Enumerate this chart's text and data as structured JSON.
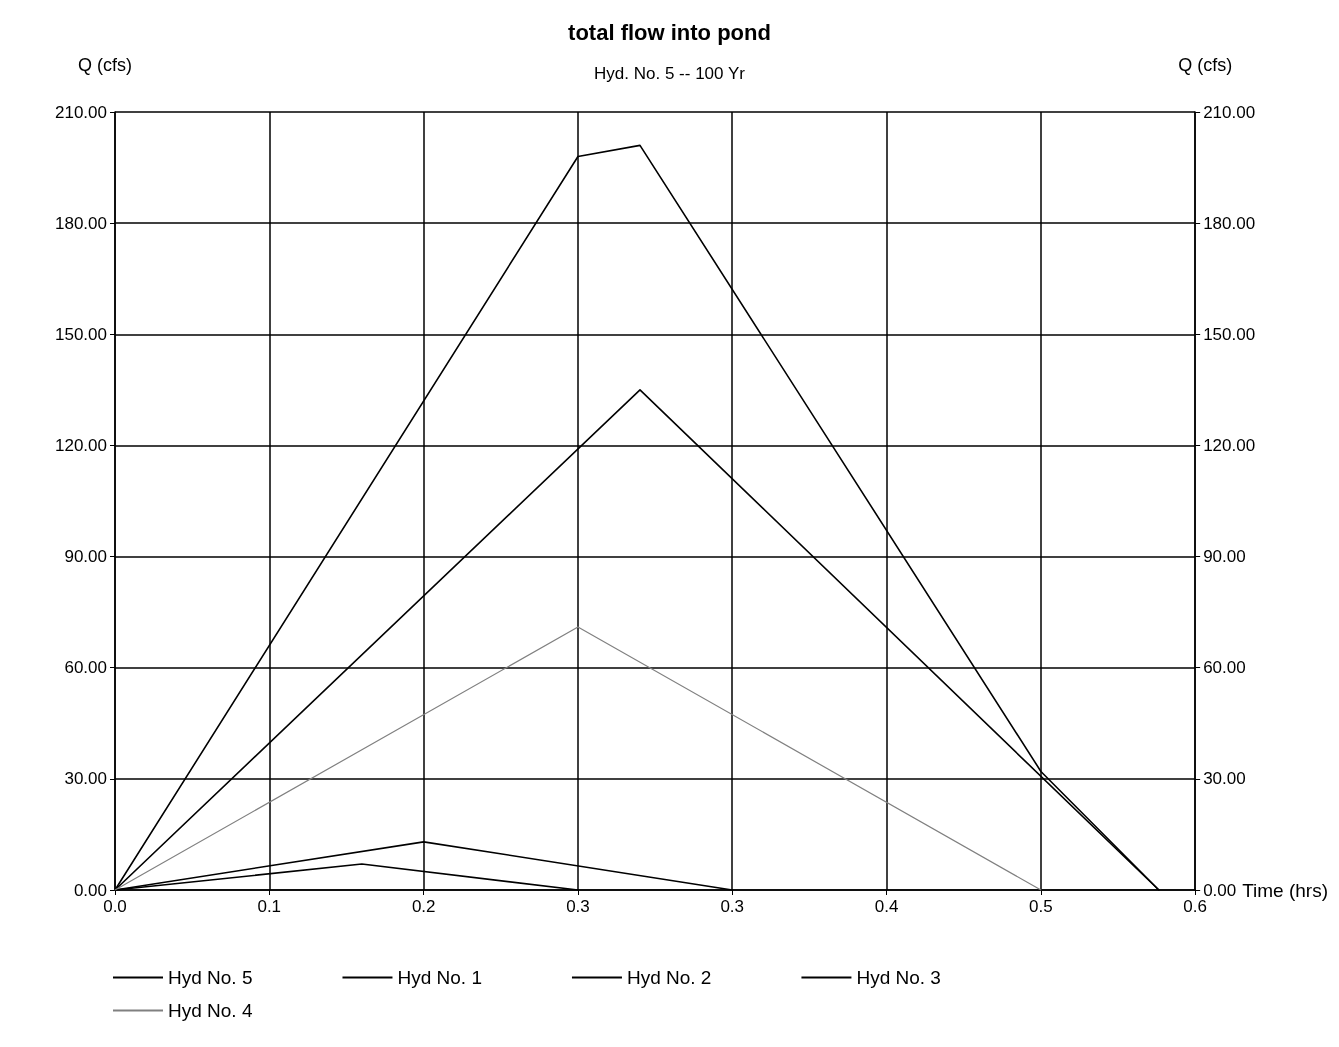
{
  "chart_data": {
    "type": "line",
    "title": "total flow into pond",
    "subtitle": "Hyd. No. 5 -- 100 Yr",
    "xlabel": "Time (hrs)",
    "ylabel": "Q (cfs)",
    "y2label": "Q (cfs)",
    "xlim": [
      0,
      0.5833
    ],
    "xticks": [
      {
        "value": 0,
        "label": "0.0"
      },
      {
        "value": 0.0833,
        "label": "0.1"
      },
      {
        "value": 0.1667,
        "label": "0.2"
      },
      {
        "value": 0.25,
        "label": "0.3"
      },
      {
        "value": 0.3333,
        "label": "0.3"
      },
      {
        "value": 0.4167,
        "label": "0.4"
      },
      {
        "value": 0.5,
        "label": "0.5"
      },
      {
        "value": 0.5833,
        "label": "0.6"
      }
    ],
    "ylim": [
      0,
      210
    ],
    "yticks": [
      {
        "value": 0,
        "label": "0.00"
      },
      {
        "value": 30,
        "label": "30.00"
      },
      {
        "value": 60,
        "label": "60.00"
      },
      {
        "value": 90,
        "label": "90.00"
      },
      {
        "value": 120,
        "label": "120.00"
      },
      {
        "value": 150,
        "label": "150.00"
      },
      {
        "value": 180,
        "label": "180.00"
      },
      {
        "value": 210,
        "label": "210.00"
      }
    ],
    "y2lim": [
      0,
      210
    ],
    "y2ticks": [
      {
        "value": 0,
        "label": "0.00"
      },
      {
        "value": 30,
        "label": "30.00"
      },
      {
        "value": 60,
        "label": "60.00"
      },
      {
        "value": 90,
        "label": "90.00"
      },
      {
        "value": 120,
        "label": "120.00"
      },
      {
        "value": 150,
        "label": "150.00"
      },
      {
        "value": 180,
        "label": "180.00"
      },
      {
        "value": 210,
        "label": "210.00"
      }
    ],
    "series": [
      {
        "name": "Hyd No. 5",
        "color": "#000000",
        "x": [
          0,
          0.25,
          0.2835,
          0.5,
          0.5637
        ],
        "values": [
          0,
          198,
          201,
          32,
          0
        ]
      },
      {
        "name": "Hyd No. 1",
        "color": "#000000",
        "x": [
          0,
          0.2835,
          0.5637
        ],
        "values": [
          0,
          135,
          0
        ]
      },
      {
        "name": "Hyd No. 2",
        "color": "#000000",
        "x": [
          0,
          0.1667,
          0.3333
        ],
        "values": [
          0,
          13,
          0
        ]
      },
      {
        "name": "Hyd No. 3",
        "color": "#000000",
        "x": [
          0,
          0.1333,
          0.25
        ],
        "values": [
          0,
          7,
          0
        ]
      },
      {
        "name": "Hyd No. 4",
        "color": "#808080",
        "x": [
          0,
          0.25,
          0.5
        ],
        "values": [
          0,
          71,
          0
        ]
      }
    ],
    "grid": true,
    "legend": "bottom",
    "marker": "none",
    "line_style": "solid"
  }
}
